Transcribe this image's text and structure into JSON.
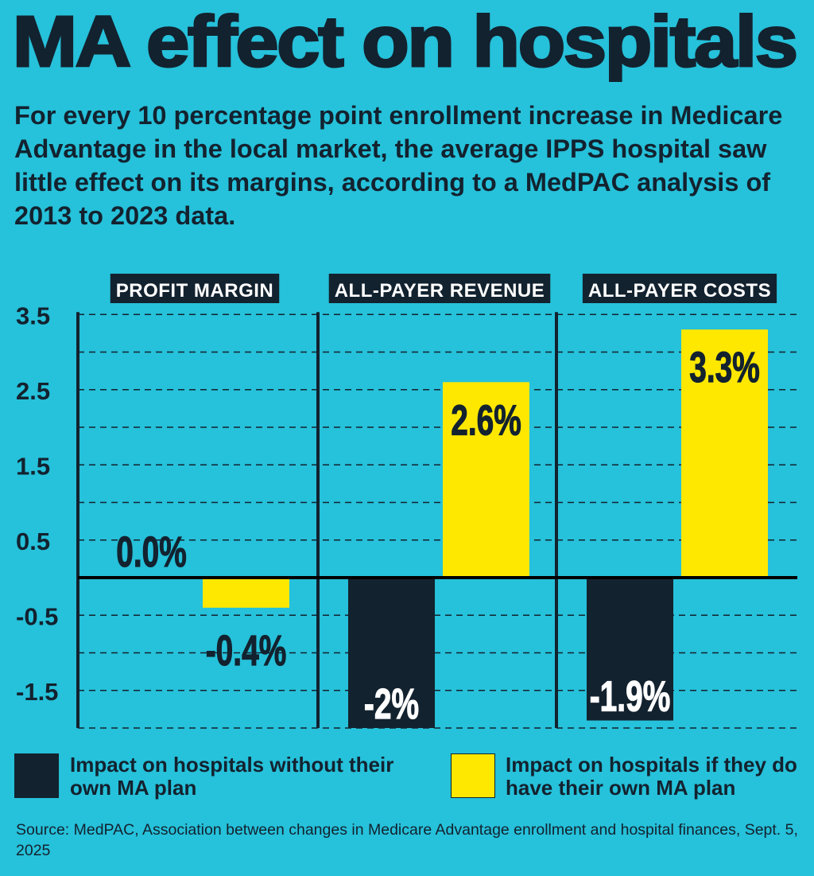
{
  "title": "MA effect on hospitals",
  "subtitle": "For every 10 percentage point enrollment increase in Medicare Advantage in the local market, the average IPPS hospital saw little effect on its margins, according to a MedPAC analysis of 2013 to 2023 data.",
  "colors": {
    "background": "#26c1da",
    "dark": "#13222f",
    "yellow": "#ffe800"
  },
  "chart_data": {
    "type": "bar",
    "categories": [
      "PROFIT MARGIN",
      "ALL-PAYER REVENUE",
      "ALL-PAYER COSTS"
    ],
    "series": [
      {
        "name": "Impact on hospitals without their own MA plan",
        "color": "#13222f",
        "values": [
          0.0,
          -2,
          -1.9
        ],
        "labels": [
          "0.0%",
          "-2%",
          "-1.9%"
        ]
      },
      {
        "name": "Impact on hospitals if they do have their own MA plan",
        "color": "#ffe800",
        "values": [
          -0.4,
          2.6,
          3.3
        ],
        "labels": [
          "-0.4%",
          "2.6%",
          "3.3%"
        ]
      }
    ],
    "ylim": [
      -2,
      3.5
    ],
    "yticks": [
      "3.5",
      "2.5",
      "1.5",
      "0.5",
      "-0.5",
      "-1.5"
    ],
    "ytick_values": [
      3.5,
      2.5,
      1.5,
      0.5,
      -0.5,
      -1.5
    ],
    "grid": true,
    "legend": "bottom"
  },
  "source": "Source: MedPAC, Association between changes in Medicare Advantage enrollment and hospital finances, Sept. 5, 2025"
}
